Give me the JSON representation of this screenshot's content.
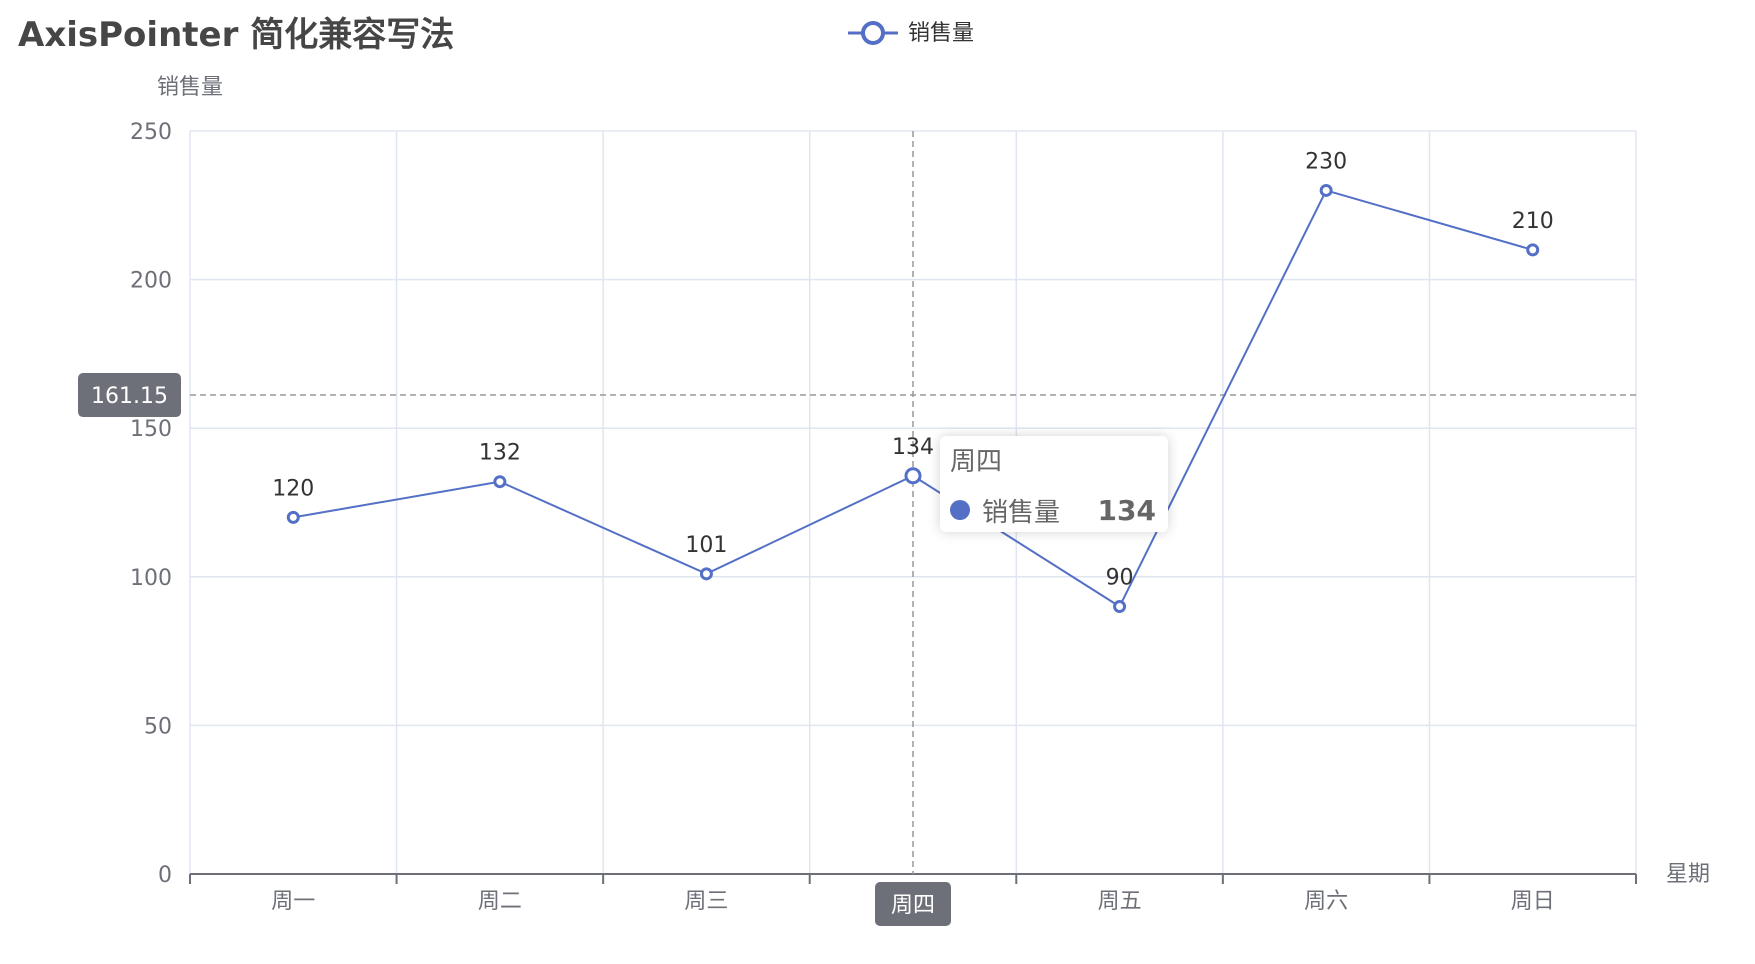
{
  "chart_data": {
    "type": "line",
    "title": "AxisPointer 简化兼容写法",
    "xlabel": "星期",
    "ylabel": "销售量",
    "categories": [
      "周一",
      "周二",
      "周三",
      "周四",
      "周五",
      "周六",
      "周日"
    ],
    "series": [
      {
        "name": "销售量",
        "values": [
          120,
          132,
          101,
          134,
          90,
          230,
          210
        ],
        "color": "#5470c6"
      }
    ],
    "ylim": [
      0,
      250
    ],
    "yticks": [
      0,
      50,
      100,
      150,
      200,
      250
    ],
    "grid": true,
    "legend": "top-center",
    "axis_pointer": {
      "x_category": "周四",
      "y_value_label": "161.15",
      "y_value": 161.15
    }
  },
  "tooltip": {
    "title": "周四",
    "series_name": "销售量",
    "value": "134"
  },
  "colors": {
    "series": "#5470c6",
    "grid": "#e0e6f1",
    "axis": "#6e7079",
    "pointer": "#999999",
    "pointer_label_bg": "#6e7079"
  }
}
